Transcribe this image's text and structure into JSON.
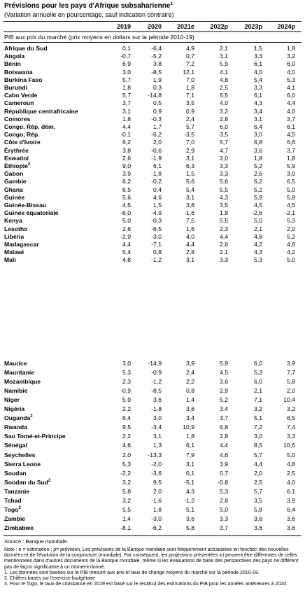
{
  "header": {
    "title": "Prévisions pour les pays d'Afrique subsaharienne",
    "title_note": "1",
    "subtitle": "(Variation annuelle en pourcentage, sauf indication contraire)"
  },
  "table": {
    "columns": [
      "2019",
      "2020",
      "2021e",
      "2022p",
      "2023p",
      "2024p"
    ],
    "subheader": "PIB aux prix du marché (prix moyens en dollars sur la période 2010-19)",
    "blocks": [
      {
        "rows": [
          {
            "name": "Afrique du Sud",
            "values": [
              "0,1",
              "-6,4",
              "4,9",
              "2,1",
              "1,5",
              "1,8"
            ]
          },
          {
            "name": "Angola",
            "values": [
              "-0,7",
              "-5,2",
              "0,7",
              "3,1",
              "3,3",
              "3,2"
            ]
          },
          {
            "name": "Bénin",
            "values": [
              "6,9",
              "3,8",
              "7,2",
              "5,9",
              "6,1",
              "6,0"
            ]
          },
          {
            "name": "Botswana",
            "values": [
              "3,0",
              "-8,5",
              "12,1",
              "4,1",
              "4,0",
              "4,0"
            ]
          },
          {
            "name": "Burkina Faso",
            "values": [
              "5,7",
              "1,9",
              "7,0",
              "4,8",
              "5,4",
              "5,3"
            ]
          },
          {
            "name": "Burundi",
            "values": [
              "1,8",
              "0,3",
              "1,8",
              "2,5",
              "3,3",
              "4,1"
            ]
          },
          {
            "name": "Cabo Verde",
            "values": [
              "5,7",
              "-14,8",
              "7,1",
              "5,5",
              "6,1",
              "6,0"
            ]
          },
          {
            "name": "Cameroun",
            "values": [
              "3,7",
              "0,5",
              "3,5",
              "4,0",
              "4,3",
              "4,4"
            ]
          },
          {
            "name": "République centrafricaine",
            "values": [
              "3,1",
              "0,9",
              "0,9",
              "3,2",
              "3,4",
              "4,0"
            ]
          },
          {
            "name": "Comores",
            "values": [
              "1,8",
              "-0,3",
              "2,4",
              "2,8",
              "3,1",
              "3,7"
            ]
          },
          {
            "name": "Congo, Rép. dém.",
            "values": [
              "4,4",
              "1,7",
              "5,7",
              "6,0",
              "6,4",
              "6,1"
            ]
          },
          {
            "name": "Congo, Rép.",
            "values": [
              "-0,1",
              "-6,2",
              "-3,5",
              "3,5",
              "3,0",
              "4,5"
            ]
          },
          {
            "name": "Côte d'Ivoire",
            "values": [
              "6,2",
              "2,0",
              "7,0",
              "5,7",
              "6,8",
              "6,6"
            ]
          },
          {
            "name": "Érythrée",
            "values": [
              "3,8",
              "-0,6",
              "2,9",
              "4,7",
              "3,6",
              "3,7"
            ]
          },
          {
            "name": "Eswatini",
            "values": [
              "2,6",
              "-1,9",
              "3,1",
              "2,0",
              "1,8",
              "1,8"
            ]
          },
          {
            "name": "Éthiopie",
            "note": "2",
            "values": [
              "9,0",
              "6,1",
              "6,3",
              "3,3",
              "5,2",
              "5,9"
            ]
          },
          {
            "name": "Gabon",
            "values": [
              "3,9",
              "-1,8",
              "1,5",
              "3,3",
              "2,6",
              "3,0"
            ]
          },
          {
            "name": "Gambie",
            "values": [
              "6,2",
              "-0,2",
              "5,6",
              "5,6",
              "6,2",
              "6,5"
            ]
          },
          {
            "name": "Ghana",
            "values": [
              "6,5",
              "0,4",
              "5,4",
              "5,5",
              "5,2",
              "5,0"
            ]
          },
          {
            "name": "Guinée",
            "values": [
              "5,6",
              "4,6",
              "3,1",
              "4,3",
              "5,9",
              "5,8"
            ]
          },
          {
            "name": "Guinée-Bissau",
            "values": [
              "4,5",
              "1,5",
              "3,8",
              "3,5",
              "4,5",
              "4,5"
            ]
          },
          {
            "name": "Guinée équatoriale",
            "values": [
              "-6,0",
              "-4,9",
              "-1,6",
              "1,8",
              "-2,6",
              "-2,1"
            ]
          },
          {
            "name": "Kenya",
            "values": [
              "5,0",
              "-0,3",
              "7,5",
              "5,5",
              "5,0",
              "5,3"
            ]
          },
          {
            "name": "Lesotho",
            "values": [
              "2,6",
              "-6,5",
              "1,6",
              "2,3",
              "2,1",
              "2,0"
            ]
          },
          {
            "name": "Libéria",
            "values": [
              "-2,9",
              "-3,0",
              "4,0",
              "4,4",
              "4,8",
              "5,2"
            ]
          },
          {
            "name": "Madagascar",
            "values": [
              "4,4",
              "-7,1",
              "4,4",
              "2,6",
              "4,2",
              "4,6"
            ]
          },
          {
            "name": "Malawi",
            "values": [
              "5,4",
              "0,8",
              "2,8",
              "2,1",
              "4,3",
              "4,2"
            ]
          },
          {
            "name": "Mali",
            "values": [
              "4,8",
              "-1,2",
              "3,1",
              "3,3",
              "5,3",
              "5,0"
            ]
          }
        ]
      },
      {
        "rows": [
          {
            "name": "Maurice",
            "values": [
              "3,0",
              "-14,9",
              "3,9",
              "5,9",
              "6,0",
              "3,9"
            ]
          },
          {
            "name": "Mauritanie",
            "values": [
              "5,3",
              "-0,9",
              "2,4",
              "4,5",
              "5,3",
              "7,7"
            ]
          },
          {
            "name": "Mozambique",
            "values": [
              "2,3",
              "-1,2",
              "2,2",
              "3,6",
              "6,0",
              "5,8"
            ]
          },
          {
            "name": "Namibie",
            "values": [
              "-0,9",
              "-8,5",
              "0,8",
              "2,9",
              "2,1",
              "2,0"
            ]
          },
          {
            "name": "Niger",
            "values": [
              "5,9",
              "3,6",
              "1,4",
              "5,2",
              "7,1",
              "10,4"
            ]
          },
          {
            "name": "Nigéria",
            "values": [
              "2,2",
              "-1,8",
              "3,6",
              "3,4",
              "3,2",
              "3,2"
            ]
          },
          {
            "name": "Ouganda",
            "note": "2",
            "values": [
              "6,4",
              "3,0",
              "3,4",
              "3,7",
              "5,1",
              "6,5"
            ]
          },
          {
            "name": "Rwanda",
            "values": [
              "9,5",
              "-3,4",
              "10,9",
              "6,8",
              "7,2",
              "7,4"
            ]
          },
          {
            "name": "Sao Tomé-et-Principe",
            "values": [
              "2,2",
              "3,1",
              "1,8",
              "2,8",
              "3,0",
              "3,3"
            ]
          },
          {
            "name": "Sénégal",
            "values": [
              "4,6",
              "1,3",
              "6,1",
              "4,4",
              "8,5",
              "10,6"
            ]
          },
          {
            "name": "Seychelles",
            "values": [
              "2,0",
              "-13,3",
              "7,9",
              "4,6",
              "5,7",
              "5,0"
            ]
          },
          {
            "name": "Sierra Leone",
            "values": [
              "5,3",
              "-2,0",
              "3,1",
              "3,9",
              "4,4",
              "4,8"
            ]
          },
          {
            "name": "Soudan",
            "values": [
              "-2,2",
              "-3,6",
              "0,1",
              "0,7",
              "2,0",
              "2,5"
            ]
          },
          {
            "name": "Soudan du Sud",
            "note": "2",
            "values": [
              "3,2",
              "9,5",
              "-5,1",
              "-0,8",
              "2,5",
              "4,0"
            ]
          },
          {
            "name": "Tanzanie",
            "values": [
              "5,8",
              "2,0",
              "4,3",
              "5,3",
              "5,7",
              "6,1"
            ]
          },
          {
            "name": "Tchad",
            "values": [
              "3,2",
              "-1,6",
              "-1,2",
              "2,8",
              "3,5",
              "3,9"
            ]
          },
          {
            "name": "Togo",
            "note": "3",
            "values": [
              "5,5",
              "1,8",
              "5,1",
              "5,0",
              "5,8",
              "6,4"
            ]
          },
          {
            "name": "Zambie",
            "values": [
              "1,4",
              "-3,0",
              "3,6",
              "3,3",
              "3,6",
              "3,6"
            ]
          },
          {
            "name": "Zimbabwe",
            "values": [
              "-8,1",
              "-6,2",
              "5,8",
              "3,7",
              "3,6",
              "3,6"
            ]
          }
        ]
      }
    ]
  },
  "footer": {
    "source_label": "Source :",
    "source": "Banque mondiale.",
    "notes": [
      "Note : e = estimation ; p= prévision. Les prévisions de la Banque mondiale sont fréquemment actualisées en fonction des nouvelles données et de l'évolution de la conjoncture (mondiale). Par conséquent, les projections présentées ici peuvent être différentes de celles mentionnées dans d'autres documents de la Banque mondiale, même si les évaluations de base des perspectives des pays ne diffèrent pas de façon significative à un moment donné.",
      "1. Les données sont basées sur le PIB mesuré aux prix et taux de change moyens du marché sur la période 2010-19.",
      "2. Chiffres basés sur l'exercice budgétaire.",
      "3. Pour le Togo, le taux de croissance en 2019 est basé sur le recalcul des estimations du PIB pour les années antérieures à 2020."
    ]
  }
}
